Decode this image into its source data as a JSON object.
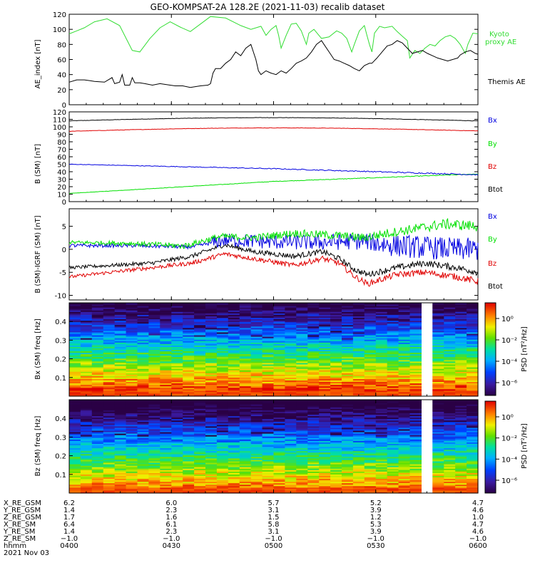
{
  "title": "GEO-KOMPSAT-2A 128.2E (2021-11-03) recalib dataset",
  "colors": {
    "black": "#000000",
    "red": "#e00000",
    "green": "#00e000",
    "blue": "#0000e0",
    "kyoto": "#33dd33"
  },
  "chart_data": [
    {
      "type": "line",
      "ylabel": "AE_index [nT]",
      "ylim": [
        0,
        120
      ],
      "yticks": [
        0,
        20,
        40,
        60,
        80,
        100,
        120
      ],
      "x": [
        "04:00",
        "04:30",
        "05:00",
        "05:30",
        "06:00"
      ],
      "legend_placement": "right",
      "series": [
        {
          "name": "Kyoto proxy AE",
          "color": "#33dd33",
          "points": [
            [
              0,
              94
            ],
            [
              3,
              98
            ],
            [
              6,
              102
            ],
            [
              10,
              110
            ],
            [
              15,
              114
            ],
            [
              20,
              105
            ],
            [
              23,
              85
            ],
            [
              25,
              72
            ],
            [
              28,
              70
            ],
            [
              32,
              88
            ],
            [
              36,
              102
            ],
            [
              40,
              110
            ],
            [
              44,
              103
            ],
            [
              48,
              97
            ],
            [
              52,
              107
            ],
            [
              56,
              117
            ],
            [
              62,
              115
            ],
            [
              68,
              105
            ],
            [
              72,
              100
            ],
            [
              76,
              104
            ],
            [
              78,
              92
            ],
            [
              80,
              100
            ],
            [
              82,
              105
            ],
            [
              83,
              92
            ],
            [
              84,
              75
            ],
            [
              86,
              92
            ],
            [
              88,
              107
            ],
            [
              90,
              108
            ],
            [
              92,
              98
            ],
            [
              94,
              80
            ],
            [
              95,
              95
            ],
            [
              97,
              100
            ],
            [
              100,
              88
            ],
            [
              103,
              90
            ],
            [
              106,
              98
            ],
            [
              108,
              95
            ],
            [
              110,
              88
            ],
            [
              112,
              70
            ],
            [
              113,
              80
            ],
            [
              115,
              98
            ],
            [
              117,
              105
            ],
            [
              118,
              92
            ],
            [
              119,
              80
            ],
            [
              120,
              70
            ],
            [
              121,
              95
            ],
            [
              123,
              104
            ],
            [
              125,
              102
            ],
            [
              128,
              104
            ],
            [
              130,
              97
            ],
            [
              132,
              91
            ],
            [
              134,
              85
            ],
            [
              135,
              62
            ],
            [
              137,
              72
            ],
            [
              139,
              68
            ],
            [
              141,
              75
            ],
            [
              143,
              80
            ],
            [
              145,
              78
            ],
            [
              147,
              85
            ],
            [
              149,
              90
            ],
            [
              151,
              92
            ],
            [
              153,
              88
            ],
            [
              155,
              80
            ],
            [
              157,
              68
            ],
            [
              158,
              80
            ],
            [
              160,
              95
            ],
            [
              162,
              94
            ]
          ]
        },
        {
          "name": "Themis AE",
          "color": "#000000",
          "points": [
            [
              0,
              30
            ],
            [
              3,
              33
            ],
            [
              6,
              33
            ],
            [
              10,
              31
            ],
            [
              14,
              30
            ],
            [
              17,
              36
            ],
            [
              18,
              28
            ],
            [
              20,
              30
            ],
            [
              21,
              40
            ],
            [
              22,
              26
            ],
            [
              24,
              26
            ],
            [
              25,
              36
            ],
            [
              26,
              29
            ],
            [
              28,
              29
            ],
            [
              30,
              28
            ],
            [
              33,
              26
            ],
            [
              36,
              28
            ],
            [
              40,
              26
            ],
            [
              42,
              25
            ],
            [
              45,
              25
            ],
            [
              48,
              23
            ],
            [
              52,
              25
            ],
            [
              55,
              26
            ],
            [
              56,
              28
            ],
            [
              57,
              42
            ],
            [
              58,
              48
            ],
            [
              60,
              48
            ],
            [
              62,
              55
            ],
            [
              64,
              60
            ],
            [
              66,
              70
            ],
            [
              68,
              65
            ],
            [
              70,
              75
            ],
            [
              72,
              80
            ],
            [
              74,
              60
            ],
            [
              75,
              45
            ],
            [
              76,
              40
            ],
            [
              78,
              45
            ],
            [
              80,
              42
            ],
            [
              82,
              40
            ],
            [
              84,
              45
            ],
            [
              86,
              42
            ],
            [
              88,
              48
            ],
            [
              90,
              55
            ],
            [
              92,
              58
            ],
            [
              94,
              62
            ],
            [
              96,
              70
            ],
            [
              98,
              80
            ],
            [
              100,
              85
            ],
            [
              101,
              80
            ],
            [
              103,
              70
            ],
            [
              105,
              60
            ],
            [
              107,
              58
            ],
            [
              109,
              55
            ],
            [
              111,
              52
            ],
            [
              113,
              48
            ],
            [
              115,
              45
            ],
            [
              117,
              52
            ],
            [
              119,
              55
            ],
            [
              120,
              55
            ],
            [
              122,
              62
            ],
            [
              124,
              70
            ],
            [
              126,
              78
            ],
            [
              128,
              80
            ],
            [
              130,
              85
            ],
            [
              132,
              82
            ],
            [
              134,
              75
            ],
            [
              136,
              68
            ],
            [
              138,
              70
            ],
            [
              140,
              72
            ],
            [
              142,
              68
            ],
            [
              144,
              65
            ],
            [
              146,
              62
            ],
            [
              148,
              60
            ],
            [
              150,
              58
            ],
            [
              152,
              60
            ],
            [
              154,
              62
            ],
            [
              155,
              66
            ],
            [
              157,
              70
            ],
            [
              159,
              72
            ],
            [
              161,
              68
            ],
            [
              162,
              67
            ]
          ]
        }
      ]
    },
    {
      "type": "line",
      "ylabel": "B (SM) [nT]",
      "ylim": [
        0,
        120
      ],
      "yticks": [
        0,
        10,
        20,
        30,
        40,
        50,
        60,
        70,
        80,
        90,
        100,
        110,
        120
      ],
      "x": [
        "04:00",
        "04:30",
        "05:00",
        "05:30",
        "06:00"
      ],
      "legend_placement": "right",
      "series": [
        {
          "name": "Bx",
          "color": "#000000",
          "start": 108,
          "mid": 112,
          "end": 109
        },
        {
          "name": "By",
          "color": "#00e000",
          "start": 11,
          "mid": 27,
          "end": 37
        },
        {
          "name": "Bz",
          "color": "#e00000",
          "start": 94,
          "mid": 98,
          "end": 96
        },
        {
          "name": "Btot",
          "color": "#0000e0",
          "start": 50,
          "mid": 44,
          "end": 36
        }
      ]
    },
    {
      "type": "line",
      "ylabel": "B (SM)-IGRF (SM) [nT]",
      "ylim": [
        -11,
        8.8
      ],
      "yticks": [
        -10,
        -5,
        0,
        5
      ],
      "x": [
        "04:00",
        "04:30",
        "05:00",
        "05:30",
        "06:00"
      ],
      "legend_placement": "right",
      "series": [
        {
          "name": "Bx",
          "color": "#0000e0"
        },
        {
          "name": "By",
          "color": "#00e000"
        },
        {
          "name": "Bz",
          "color": "#e00000"
        },
        {
          "name": "Btot",
          "color": "#000000"
        }
      ]
    },
    {
      "type": "heatmap",
      "ylabel": "Bx (SM) freq [Hz]",
      "ylim": [
        0,
        0.5
      ],
      "yticks": [
        0.1,
        0.2,
        0.3,
        0.4
      ],
      "colorbar_label": "PSD [nT²/Hz]",
      "colorbar_ticks": [
        "10⁰",
        "10⁻²",
        "10⁻⁴",
        "10⁻⁶"
      ],
      "gap": [
        0.84,
        0.88
      ]
    },
    {
      "type": "heatmap",
      "ylabel": "Bz (SM) freq [Hz]",
      "ylim": [
        0,
        0.5
      ],
      "yticks": [
        0.1,
        0.2,
        0.3,
        0.4
      ],
      "colorbar_label": "PSD [nT²/Hz]",
      "colorbar_ticks": [
        "10⁰",
        "10⁻²",
        "10⁻⁴",
        "10⁻⁶"
      ],
      "gap": [
        0.84,
        0.88
      ]
    }
  ],
  "legends": {
    "ae": [
      "Kyoto",
      "proxy AE",
      "Themis AE"
    ],
    "b": [
      "Bx",
      "By",
      "Bz",
      "Btot"
    ],
    "dB": [
      "Bx",
      "By",
      "Bz",
      "Btot"
    ]
  },
  "ephemeris": {
    "labels": [
      "X_RE_GSM",
      "Y_RE_GSM",
      "Z_RE_GSM",
      "X_RE_SM",
      "Y_RE_SM",
      "Z_RE_SM",
      "hhmm",
      "2021 Nov 03"
    ],
    "columns": [
      [
        "6.2",
        "1.4",
        "1.7",
        "6.4",
        "1.4",
        "−1.0",
        "0400"
      ],
      [
        "6.0",
        "2.3",
        "1.6",
        "6.1",
        "2.3",
        "−1.0",
        "0430"
      ],
      [
        "5.7",
        "3.1",
        "1.5",
        "5.8",
        "3.1",
        "−1.0",
        "0500"
      ],
      [
        "5.2",
        "3.9",
        "1.2",
        "5.3",
        "3.9",
        "−1.0",
        "0530"
      ],
      [
        "4.7",
        "4.6",
        "1.0",
        "4.7",
        "4.6",
        "−1.0",
        "0600"
      ]
    ]
  }
}
